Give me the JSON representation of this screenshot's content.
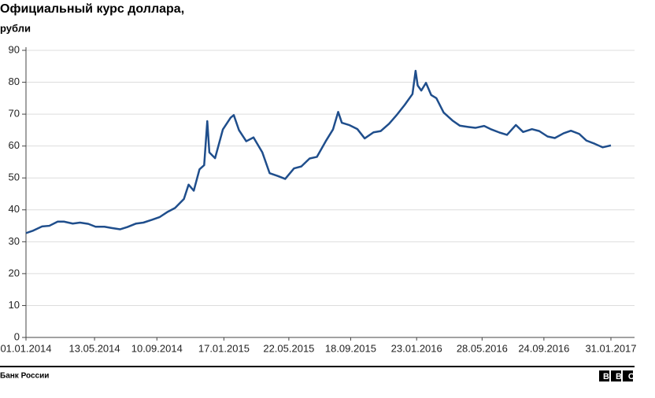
{
  "chart_data": {
    "type": "line",
    "title": "Официальный курс доллара,",
    "subtitle": "рубли",
    "source": "Банк России",
    "logo": "BBC",
    "color": "#1f4e8c",
    "grid": true,
    "ylim": [
      0,
      90
    ],
    "yticks": [
      0,
      10,
      20,
      30,
      40,
      50,
      60,
      70,
      80,
      90
    ],
    "xlim": [
      "01.01.2014",
      "31.01.2017"
    ],
    "xticks": [
      "01.01.2014",
      "13.05.2014",
      "10.09.2014",
      "17.01.2015",
      "22.05.2015",
      "18.09.2015",
      "23.01.2016",
      "28.05.2016",
      "24.09.2016",
      "31.01.2017"
    ],
    "x": [
      "01.01.2014",
      "15.01.2014",
      "01.02.2014",
      "15.02.2014",
      "03.03.2014",
      "15.03.2014",
      "01.04.2014",
      "15.04.2014",
      "01.05.2014",
      "15.05.2014",
      "01.06.2014",
      "15.06.2014",
      "01.07.2014",
      "15.07.2014",
      "01.08.2014",
      "15.08.2014",
      "01.09.2014",
      "15.09.2014",
      "01.10.2014",
      "15.10.2014",
      "01.11.2014",
      "10.11.2014",
      "20.11.2014",
      "01.12.2014",
      "10.12.2014",
      "16.12.2014",
      "20.12.2014",
      "31.12.2014",
      "15.01.2015",
      "30.01.2015",
      "05.02.2015",
      "15.02.2015",
      "01.03.2015",
      "15.03.2015",
      "01.04.2015",
      "15.04.2015",
      "01.05.2015",
      "15.05.2015",
      "01.06.2015",
      "15.06.2015",
      "01.07.2015",
      "15.07.2015",
      "01.08.2015",
      "15.08.2015",
      "25.08.2015",
      "01.09.2015",
      "15.09.2015",
      "01.10.2015",
      "15.10.2015",
      "01.11.2015",
      "15.11.2015",
      "01.12.2015",
      "15.12.2015",
      "31.12.2015",
      "15.01.2016",
      "21.01.2016",
      "25.01.2016",
      "01.02.2016",
      "10.02.2016",
      "20.02.2016",
      "01.03.2016",
      "15.03.2016",
      "01.04.2016",
      "15.04.2016",
      "01.05.2016",
      "15.05.2016",
      "01.06.2016",
      "15.06.2016",
      "01.07.2016",
      "15.07.2016",
      "01.08.2016",
      "15.08.2016",
      "01.09.2016",
      "15.09.2016",
      "01.10.2016",
      "15.10.2016",
      "01.11.2016",
      "15.11.2016",
      "01.12.2016",
      "15.12.2016",
      "31.12.2016",
      "15.01.2017",
      "31.01.2017"
    ],
    "values": [
      32.7,
      33.5,
      34.8,
      35.0,
      36.3,
      36.3,
      35.7,
      36.0,
      35.6,
      34.7,
      34.7,
      34.3,
      33.9,
      34.6,
      35.7,
      36.0,
      36.9,
      37.7,
      39.4,
      40.6,
      43.4,
      47.9,
      46.0,
      52.7,
      54.0,
      67.8,
      58.0,
      56.2,
      65.2,
      68.9,
      69.7,
      65.0,
      61.5,
      62.7,
      58.0,
      51.5,
      50.6,
      49.7,
      53.0,
      53.6,
      56.1,
      56.6,
      61.5,
      65.2,
      70.7,
      67.3,
      66.6,
      65.3,
      62.4,
      64.3,
      64.7,
      67.0,
      69.6,
      72.9,
      76.3,
      83.6,
      79.0,
      77.4,
      79.8,
      76.0,
      75.0,
      70.5,
      68.0,
      66.4,
      66.0,
      65.7,
      66.3,
      65.2,
      64.2,
      63.5,
      66.6,
      64.4,
      65.3,
      64.7,
      63.0,
      62.5,
      64.0,
      64.8,
      63.8,
      61.7,
      60.7,
      59.6,
      60.2
    ]
  }
}
